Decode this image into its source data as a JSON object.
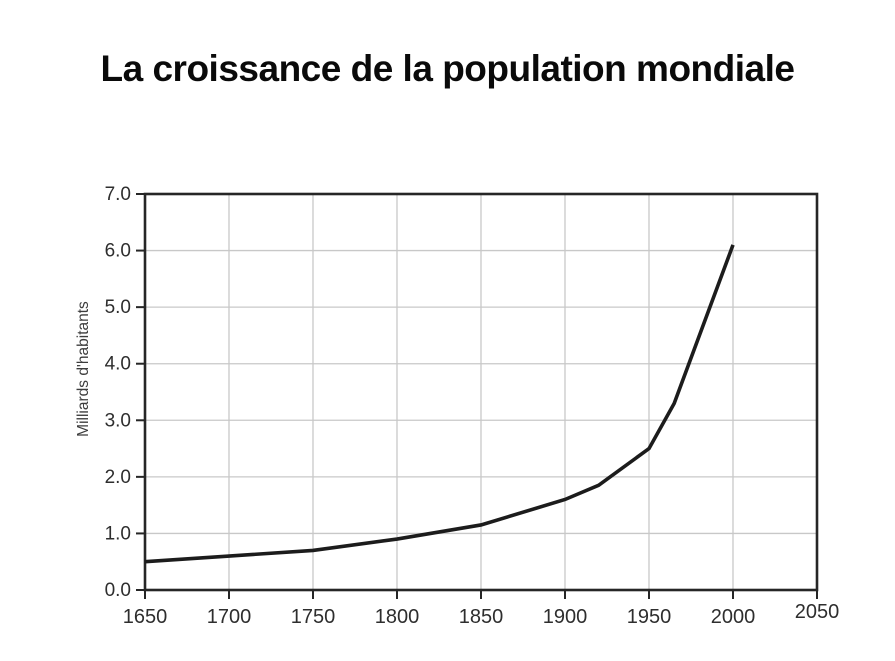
{
  "title": "La croissance de la population mondiale",
  "chart_data": {
    "type": "line",
    "title": "La croissance de la population mondiale",
    "xlabel": "",
    "ylabel": "Milliards d'habitants",
    "xlim": [
      1650,
      2050
    ],
    "ylim": [
      0.0,
      7.0
    ],
    "grid": true,
    "legend": false,
    "x_ticks": [
      {
        "v": 1650,
        "label": "1650"
      },
      {
        "v": 1700,
        "label": "1700"
      },
      {
        "v": 1750,
        "label": "1750"
      },
      {
        "v": 1800,
        "label": "1800"
      },
      {
        "v": 1850,
        "label": "1850"
      },
      {
        "v": 1900,
        "label": "1900"
      },
      {
        "v": 1950,
        "label": "1950"
      },
      {
        "v": 2000,
        "label": "2000"
      },
      {
        "v": 2050,
        "label": "2050"
      }
    ],
    "y_ticks": [
      {
        "v": 0,
        "label": "0.0"
      },
      {
        "v": 1,
        "label": "1.0"
      },
      {
        "v": 2,
        "label": "2.0"
      },
      {
        "v": 3,
        "label": "3.0"
      },
      {
        "v": 4,
        "label": "4.0"
      },
      {
        "v": 5,
        "label": "5.0"
      },
      {
        "v": 6,
        "label": "6.0"
      },
      {
        "v": 7,
        "label": "7.0"
      }
    ],
    "series": [
      {
        "points": [
          [
            1650,
            0.5
          ],
          [
            1700,
            0.6
          ],
          [
            1750,
            0.7
          ],
          [
            1800,
            0.9
          ],
          [
            1850,
            1.15
          ],
          [
            1900,
            1.6
          ],
          [
            1920,
            1.85
          ],
          [
            1950,
            2.5
          ],
          [
            1965,
            3.3
          ],
          [
            2000,
            6.1
          ]
        ]
      }
    ],
    "colors": {
      "background": "#ffffff",
      "title": "#0a0a0a",
      "line": "#1c1c1c",
      "grid": "#c8c8c8",
      "axis": "#262626",
      "tick_labels": "#2e2e2e",
      "axis_label": "#3c3c3c"
    }
  }
}
